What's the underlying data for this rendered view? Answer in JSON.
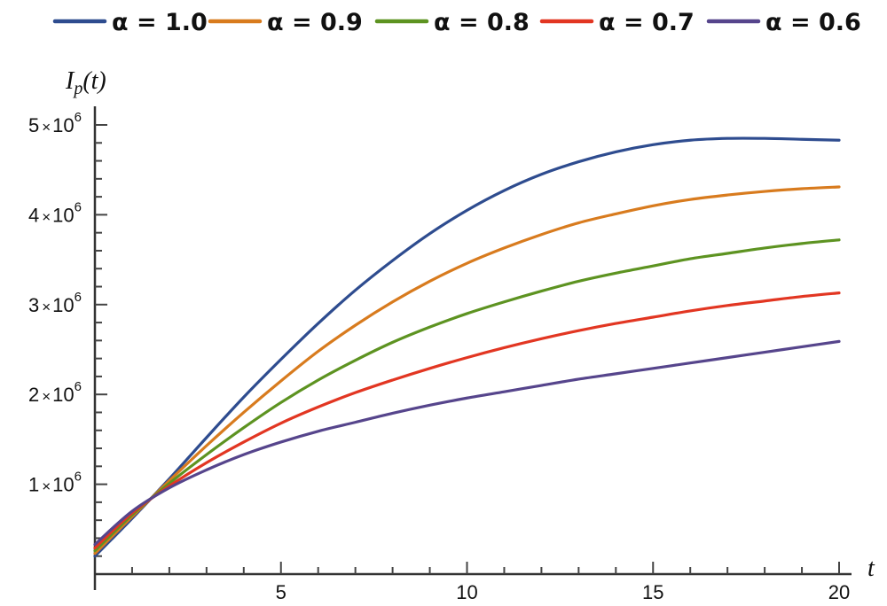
{
  "chart_data": {
    "type": "line",
    "xlabel": "t",
    "ylabel": "I_p(t)",
    "xlim": [
      0,
      20
    ],
    "ylim": [
      0,
      5000000
    ],
    "x_ticks": [
      5,
      10,
      15,
      20
    ],
    "y_ticks": [
      {
        "value": 1000000,
        "mantissa": "1",
        "exponent": "6"
      },
      {
        "value": 2000000,
        "mantissa": "2",
        "exponent": "6"
      },
      {
        "value": 3000000,
        "mantissa": "3",
        "exponent": "6"
      },
      {
        "value": 4000000,
        "mantissa": "4",
        "exponent": "6"
      },
      {
        "value": 5000000,
        "mantissa": "5",
        "exponent": "6"
      }
    ],
    "legend_position": "top",
    "grid": false,
    "x": [
      0,
      1,
      2,
      3,
      4,
      5,
      6,
      7,
      8,
      9,
      10,
      11,
      12,
      13,
      14,
      15,
      16,
      17,
      18,
      19,
      20
    ],
    "series": [
      {
        "name": "α = 1.0",
        "color": "#2e4c8f",
        "values": [
          200000,
          620000,
          1060000,
          1520000,
          1970000,
          2390000,
          2790000,
          3160000,
          3490000,
          3790000,
          4050000,
          4270000,
          4450000,
          4590000,
          4700000,
          4780000,
          4830000,
          4850000,
          4850000,
          4840000,
          4830000
        ]
      },
      {
        "name": "α = 0.9",
        "color": "#d87b1e",
        "values": [
          230000,
          640000,
          1040000,
          1430000,
          1800000,
          2150000,
          2480000,
          2770000,
          3030000,
          3260000,
          3460000,
          3630000,
          3780000,
          3910000,
          4010000,
          4100000,
          4170000,
          4220000,
          4260000,
          4290000,
          4310000
        ]
      },
      {
        "name": "α = 0.8",
        "color": "#5d9321",
        "values": [
          260000,
          660000,
          1010000,
          1330000,
          1630000,
          1910000,
          2160000,
          2380000,
          2580000,
          2750000,
          2900000,
          3030000,
          3150000,
          3260000,
          3350000,
          3430000,
          3510000,
          3570000,
          3630000,
          3680000,
          3720000
        ]
      },
      {
        "name": "α = 0.7",
        "color": "#e23622",
        "values": [
          290000,
          680000,
          980000,
          1240000,
          1470000,
          1680000,
          1860000,
          2020000,
          2160000,
          2290000,
          2410000,
          2520000,
          2620000,
          2710000,
          2790000,
          2860000,
          2930000,
          2990000,
          3040000,
          3090000,
          3130000
        ]
      },
      {
        "name": "α = 0.6",
        "color": "#56458c",
        "values": [
          330000,
          700000,
          960000,
          1160000,
          1330000,
          1470000,
          1590000,
          1690000,
          1790000,
          1880000,
          1960000,
          2030000,
          2100000,
          2170000,
          2230000,
          2290000,
          2350000,
          2410000,
          2470000,
          2530000,
          2590000
        ]
      }
    ]
  }
}
